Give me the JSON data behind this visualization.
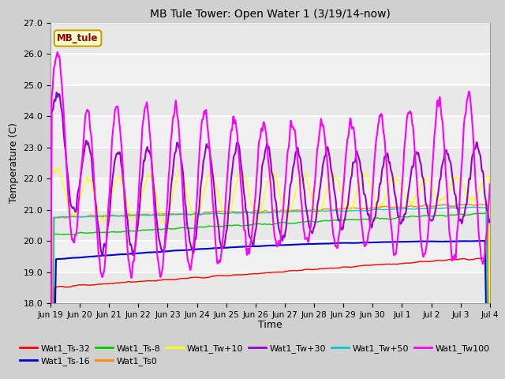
{
  "title": "MB Tule Tower: Open Water 1 (3/19/14-now)",
  "xlabel": "Time",
  "ylabel": "Temperature (C)",
  "ylim": [
    18.0,
    27.0
  ],
  "yticks": [
    18.0,
    19.0,
    20.0,
    21.0,
    22.0,
    23.0,
    24.0,
    25.0,
    26.0,
    27.0
  ],
  "series": [
    {
      "name": "Wat1_Ts-32",
      "color": "#ff0000"
    },
    {
      "name": "Wat1_Ts-16",
      "color": "#0000cc"
    },
    {
      "name": "Wat1_Ts-8",
      "color": "#00cc00"
    },
    {
      "name": "Wat1_Ts0",
      "color": "#ff8800"
    },
    {
      "name": "Wat1_Tw+10",
      "color": "#ffff00"
    },
    {
      "name": "Wat1_Tw+30",
      "color": "#9900cc"
    },
    {
      "name": "Wat1_Tw+50",
      "color": "#00cccc"
    },
    {
      "name": "Wat1_Tw100",
      "color": "#ff00ff"
    }
  ],
  "xticklabels": [
    "Jun 19",
    "Jun 20",
    "Jun 21",
    "Jun 22",
    "Jun 23",
    "Jun 24",
    "Jun 25",
    "Jun 26",
    "Jun 27",
    "Jun 28",
    "Jun 29",
    "Jun 30",
    "Jul 1",
    "Jul 2",
    "Jul 3",
    "Jul 4"
  ],
  "n_points": 800,
  "bg_bands": [
    [
      18.0,
      19.0,
      "#e8e8e8"
    ],
    [
      19.0,
      20.0,
      "#f0f0f0"
    ],
    [
      20.0,
      21.0,
      "#e8e8e8"
    ],
    [
      21.0,
      22.0,
      "#f0f0f0"
    ],
    [
      22.0,
      23.0,
      "#e8e8e8"
    ],
    [
      23.0,
      24.0,
      "#f0f0f0"
    ],
    [
      24.0,
      25.0,
      "#e8e8e8"
    ],
    [
      25.0,
      26.0,
      "#f0f0f0"
    ],
    [
      26.0,
      27.0,
      "#e8e8e8"
    ]
  ]
}
